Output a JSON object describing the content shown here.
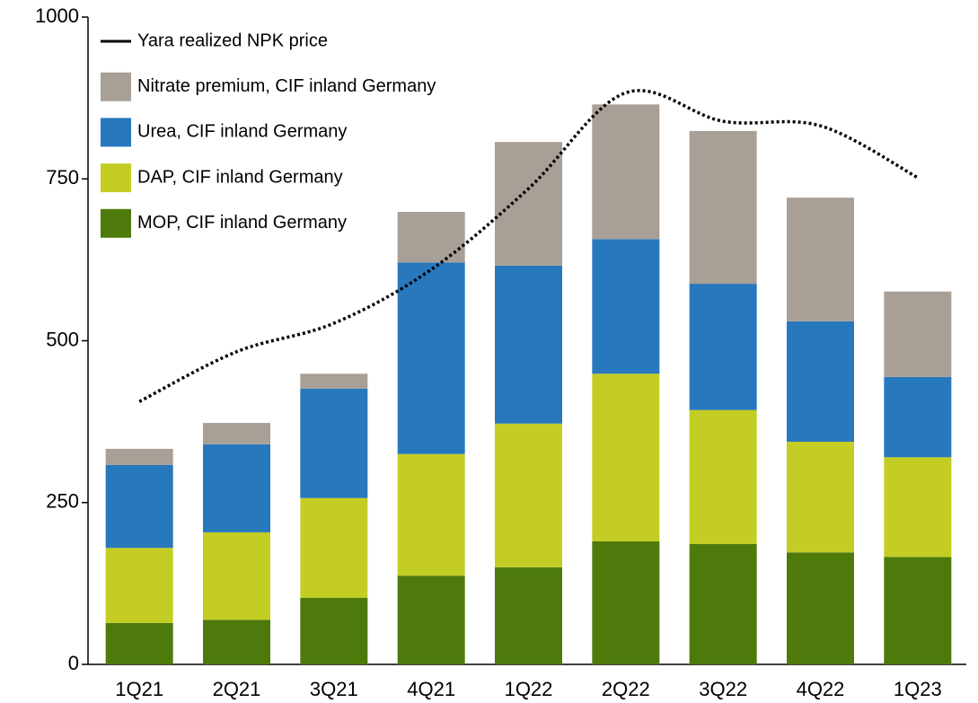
{
  "chart_data": {
    "type": "bar",
    "stacked": true,
    "categories": [
      "1Q21",
      "2Q21",
      "3Q21",
      "4Q21",
      "1Q22",
      "2Q22",
      "3Q22",
      "4Q22",
      "1Q23"
    ],
    "series": [
      {
        "name": "MOP, CIF inland Germany",
        "color": "#4e7a0b",
        "values": [
          64,
          69,
          103,
          137,
          150,
          190,
          186,
          173,
          166
        ]
      },
      {
        "name": "DAP, CIF inland Germany",
        "color": "#c4cd24",
        "values": [
          116,
          135,
          154,
          188,
          222,
          259,
          207,
          171,
          154
        ]
      },
      {
        "name": "Urea, CIF inland Germany",
        "color": "#2878be",
        "values": [
          128,
          136,
          169,
          296,
          244,
          208,
          195,
          186,
          124
        ]
      },
      {
        "name": "Nitrate premium, CIF inland Germany",
        "color": "#a89f96",
        "values": [
          25,
          33,
          23,
          78,
          191,
          208,
          236,
          191,
          132
        ]
      },
      {
        "name": "Yara realized NPK price",
        "type": "line",
        "color": "#000000",
        "values": [
          406,
          483,
          527,
          610,
          735,
          883,
          839,
          832,
          752
        ]
      }
    ],
    "ylim": [
      0,
      1000
    ],
    "yticks": [
      0,
      250,
      500,
      750,
      1000
    ],
    "grid": false,
    "legend": "upper left"
  }
}
